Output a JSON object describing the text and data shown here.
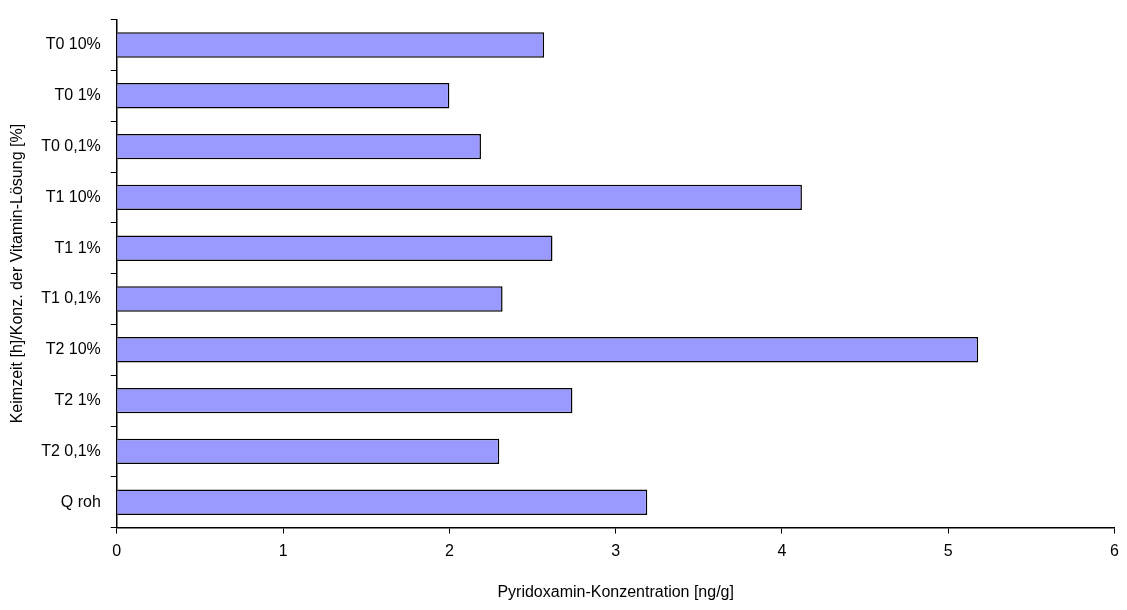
{
  "chart_data": {
    "type": "bar",
    "orientation": "horizontal",
    "xlabel": "Pyridoxamin-Konzentration [ng/g]",
    "ylabel": "Keimzeit [h]/Konz. der Vitamin-Lösung [%]",
    "categories": [
      "T0 10%",
      "T0 1%",
      "T0 0,1%",
      "T1 10%",
      "T1 1%",
      "T1 0,1%",
      "T2 10%",
      "T2 1%",
      "T2 0,1%",
      "Q roh"
    ],
    "values": [
      2.57,
      2.0,
      2.19,
      4.12,
      2.62,
      2.32,
      5.18,
      2.74,
      2.3,
      3.19
    ],
    "color": "#9999ff",
    "xlim": [
      0,
      6
    ],
    "xticks": [
      0,
      1,
      2,
      3,
      4,
      5,
      6
    ],
    "grid": false,
    "legend": false
  }
}
